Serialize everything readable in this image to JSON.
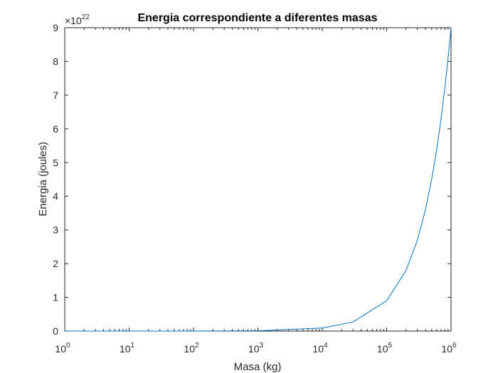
{
  "chart_data": {
    "type": "line",
    "title": "Energia correspondiente a diferentes masas",
    "xlabel": "Masa (kg)",
    "ylabel": "Energia (joules)",
    "x_scale": "log",
    "xlim": [
      1,
      1000000
    ],
    "ylim": [
      0,
      9e+22
    ],
    "x_ticks": [
      {
        "value": 1,
        "base": "10",
        "exp": "0"
      },
      {
        "value": 10,
        "base": "10",
        "exp": "1"
      },
      {
        "value": 100,
        "base": "10",
        "exp": "2"
      },
      {
        "value": 1000,
        "base": "10",
        "exp": "3"
      },
      {
        "value": 10000,
        "base": "10",
        "exp": "4"
      },
      {
        "value": 100000,
        "base": "10",
        "exp": "5"
      },
      {
        "value": 1000000,
        "base": "10",
        "exp": "6"
      }
    ],
    "y_ticks": [
      {
        "value": 0,
        "label": "0"
      },
      {
        "value": 1e+22,
        "label": "1"
      },
      {
        "value": 2e+22,
        "label": "2"
      },
      {
        "value": 3e+22,
        "label": "3"
      },
      {
        "value": 4e+22,
        "label": "4"
      },
      {
        "value": 5e+22,
        "label": "5"
      },
      {
        "value": 6e+22,
        "label": "6"
      },
      {
        "value": 7e+22,
        "label": "7"
      },
      {
        "value": 8e+22,
        "label": "8"
      },
      {
        "value": 9e+22,
        "label": "9"
      }
    ],
    "y_multiplier": {
      "prefix": "×10",
      "exp": "22"
    },
    "series": [
      {
        "color": "#0072BD",
        "x": [
          1,
          10,
          100,
          1000,
          10000,
          30000,
          100000,
          200000,
          300000,
          400000,
          500000,
          600000,
          700000,
          800000,
          900000,
          1000000
        ],
        "y": [
          9e+16,
          9e+17,
          9e+18,
          9e+19,
          9e+20,
          2.7e+21,
          9e+21,
          1.8e+22,
          2.7e+22,
          3.6e+22,
          4.5e+22,
          5.4e+22,
          6.3e+22,
          7.2e+22,
          8.1e+22,
          9e+22
        ]
      }
    ],
    "grid": false,
    "box": true
  }
}
